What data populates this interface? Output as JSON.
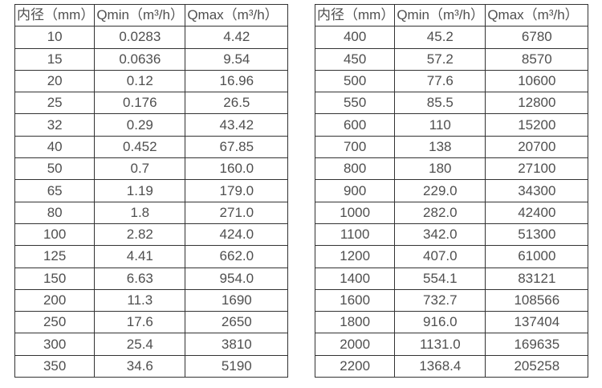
{
  "colors": {
    "background": "#ffffff",
    "border": "#333333",
    "text": "#4f4f4f"
  },
  "left_table": {
    "headers": [
      "内径（mm）",
      "Qmin（m³/h）",
      "Qmax（m³/h）"
    ],
    "rows": [
      [
        "10",
        "0.0283",
        "4.42"
      ],
      [
        "15",
        "0.0636",
        "9.54"
      ],
      [
        "20",
        "0.12",
        "16.96"
      ],
      [
        "25",
        "0.176",
        "26.5"
      ],
      [
        "32",
        "0.29",
        "43.42"
      ],
      [
        "40",
        "0.452",
        "67.85"
      ],
      [
        "50",
        "0.7",
        "160.0"
      ],
      [
        "65",
        "1.19",
        "179.0"
      ],
      [
        "80",
        "1.8",
        "271.0"
      ],
      [
        "100",
        "2.82",
        "424.0"
      ],
      [
        "125",
        "4.41",
        "662.0"
      ],
      [
        "150",
        "6.63",
        "954.0"
      ],
      [
        "200",
        "11.3",
        "1690"
      ],
      [
        "250",
        "17.6",
        "2650"
      ],
      [
        "300",
        "25.4",
        "3810"
      ],
      [
        "350",
        "34.6",
        "5190"
      ]
    ]
  },
  "right_table": {
    "headers": [
      "内径（mm）",
      "Qmin（m³/h）",
      "Qmax（m³/h）"
    ],
    "rows": [
      [
        "400",
        "45.2",
        "6780"
      ],
      [
        "450",
        "57.2",
        "8570"
      ],
      [
        "500",
        "77.6",
        "10600"
      ],
      [
        "550",
        "85.5",
        "12800"
      ],
      [
        "600",
        "110",
        "15200"
      ],
      [
        "700",
        "138",
        "20700"
      ],
      [
        "800",
        "180",
        "27100"
      ],
      [
        "900",
        "229.0",
        "34300"
      ],
      [
        "1000",
        "282.0",
        "42400"
      ],
      [
        "1100",
        "342.0",
        "51300"
      ],
      [
        "1200",
        "407.0",
        "61000"
      ],
      [
        "1400",
        "554.1",
        "83121"
      ],
      [
        "1600",
        "732.7",
        "108566"
      ],
      [
        "1800",
        "916.0",
        "137404"
      ],
      [
        "2000",
        "1131.0",
        "169635"
      ],
      [
        "2200",
        "1368.4",
        "205258"
      ]
    ]
  }
}
